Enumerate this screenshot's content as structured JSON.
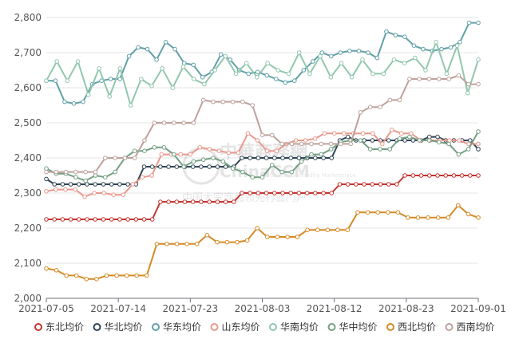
{
  "watermark": {
    "logo": "中華商務網",
    "brand": "ChinaCCM",
    "sub": "China Commodity Marketplace",
    "tagline": "中国大宗商品领先行业门户"
  },
  "chart_data": {
    "type": "line",
    "ylim": [
      2000,
      2800
    ],
    "yticks": [
      2000,
      2100,
      2200,
      2300,
      2400,
      2500,
      2600,
      2700,
      2800
    ],
    "ytick_labels": [
      "2,000",
      "2,100",
      "2,200",
      "2,300",
      "2,400",
      "2,500",
      "2,600",
      "2,700",
      "2,800"
    ],
    "xtick_labels": [
      "2021-07-05",
      "2021-07-14",
      "2021-07-23",
      "2021-08-03",
      "2021-08-12",
      "2021-08-23",
      "2021-09-01"
    ],
    "xtick_index": [
      0,
      9,
      18,
      27,
      36,
      45,
      54
    ],
    "grid": true,
    "legend_position": "bottom",
    "series": [
      {
        "name": "东北均价",
        "color": "#c23531",
        "values": [
          2225,
          2225,
          2225,
          2225,
          2225,
          2225,
          2225,
          2225,
          2225,
          2225,
          2225,
          2225,
          2225,
          2225,
          2275,
          2275,
          2275,
          2275,
          2275,
          2275,
          2275,
          2275,
          2275,
          2275,
          2300,
          2300,
          2300,
          2300,
          2300,
          2300,
          2300,
          2300,
          2300,
          2300,
          2300,
          2300,
          2325,
          2325,
          2325,
          2325,
          2325,
          2325,
          2325,
          2325,
          2350,
          2350,
          2350,
          2350,
          2350,
          2350,
          2350,
          2350,
          2350,
          2350
        ]
      },
      {
        "name": "华北均价",
        "color": "#2f4554",
        "values": [
          2340,
          2325,
          2325,
          2325,
          2325,
          2325,
          2325,
          2325,
          2325,
          2325,
          2325,
          2325,
          2375,
          2375,
          2375,
          2375,
          2375,
          2375,
          2375,
          2375,
          2375,
          2375,
          2375,
          2375,
          2400,
          2400,
          2400,
          2400,
          2400,
          2400,
          2400,
          2400,
          2400,
          2400,
          2400,
          2400,
          2450,
          2460,
          2450,
          2450,
          2450,
          2450,
          2450,
          2450,
          2450,
          2450,
          2450,
          2460,
          2460,
          2450,
          2450,
          2450,
          2450,
          2425
        ]
      },
      {
        "name": "华东均价",
        "color": "#61a0a8",
        "values": [
          2620,
          2620,
          2560,
          2555,
          2560,
          2610,
          2620,
          2625,
          2625,
          2690,
          2715,
          2710,
          2680,
          2730,
          2710,
          2670,
          2665,
          2630,
          2645,
          2695,
          2680,
          2650,
          2640,
          2645,
          2635,
          2625,
          2615,
          2620,
          2650,
          2675,
          2700,
          2690,
          2700,
          2705,
          2705,
          2700,
          2685,
          2760,
          2750,
          2745,
          2720,
          2710,
          2705,
          2710,
          2715,
          2730,
          2785,
          2785
        ]
      },
      {
        "name": "山东均价",
        "color": "#e8998d",
        "values": [
          2305,
          2310,
          2310,
          2310,
          2290,
          2300,
          2300,
          2295,
          2295,
          2325,
          2345,
          2350,
          2410,
          2410,
          2410,
          2410,
          2430,
          2425,
          2420,
          2415,
          2415,
          2470,
          2450,
          2420,
          2420,
          2440,
          2450,
          2450,
          2455,
          2470,
          2470,
          2470,
          2470,
          2470,
          2470,
          2440,
          2480,
          2470,
          2470,
          2450,
          2450,
          2450,
          2450,
          2450,
          2440,
          2440
        ]
      },
      {
        "name": "华南均价",
        "color": "#91c7ae",
        "values": [
          2620,
          2675,
          2620,
          2675,
          2580,
          2655,
          2575,
          2655,
          2550,
          2625,
          2605,
          2655,
          2600,
          2660,
          2625,
          2610,
          2650,
          2690,
          2640,
          2670,
          2630,
          2670,
          2650,
          2640,
          2700,
          2640,
          2690,
          2630,
          2670,
          2630,
          2680,
          2640,
          2640,
          2680,
          2670,
          2685,
          2650,
          2730,
          2640,
          2720,
          2585,
          2680
        ]
      },
      {
        "name": "华中均价",
        "color": "#749f83",
        "values": [
          2370,
          2355,
          2355,
          2345,
          2335,
          2350,
          2345,
          2360,
          2400,
          2420,
          2420,
          2430,
          2430,
          2410,
          2375,
          2390,
          2395,
          2400,
          2390,
          2370,
          2360,
          2345,
          2345,
          2380,
          2360,
          2360,
          2390,
          2410,
          2410,
          2425,
          2445,
          2450,
          2450,
          2425,
          2425,
          2425,
          2455,
          2460,
          2450,
          2450,
          2445,
          2440,
          2410,
          2425,
          2475
        ]
      },
      {
        "name": "西北均价",
        "color": "#d48a26",
        "values": [
          2085,
          2080,
          2065,
          2065,
          2055,
          2055,
          2065,
          2065,
          2065,
          2065,
          2065,
          2155,
          2155,
          2155,
          2155,
          2155,
          2180,
          2160,
          2160,
          2160,
          2165,
          2200,
          2175,
          2175,
          2175,
          2175,
          2195,
          2195,
          2195,
          2195,
          2195,
          2245,
          2245,
          2245,
          2245,
          2245,
          2230,
          2230,
          2230,
          2230,
          2230,
          2265,
          2240,
          2230
        ]
      },
      {
        "name": "西南均价",
        "color": "#bda29a",
        "values": [
          2360,
          2360,
          2360,
          2360,
          2360,
          2360,
          2400,
          2400,
          2400,
          2400,
          2450,
          2500,
          2500,
          2500,
          2500,
          2500,
          2565,
          2560,
          2560,
          2560,
          2560,
          2550,
          2465,
          2465,
          2440,
          2440,
          2440,
          2440,
          2440,
          2440,
          2440,
          2440,
          2530,
          2545,
          2545,
          2565,
          2565,
          2625,
          2625,
          2625,
          2625,
          2625,
          2635,
          2610,
          2610
        ]
      }
    ]
  }
}
